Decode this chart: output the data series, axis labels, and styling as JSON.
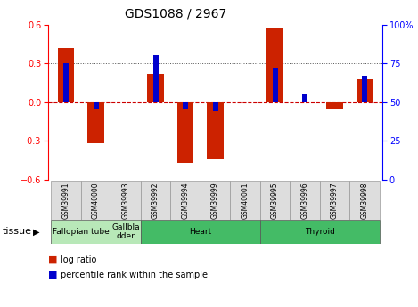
{
  "title": "GDS1088 / 2967",
  "samples": [
    "GSM39991",
    "GSM40000",
    "GSM39993",
    "GSM39992",
    "GSM39994",
    "GSM39999",
    "GSM40001",
    "GSM39995",
    "GSM39996",
    "GSM39997",
    "GSM39998"
  ],
  "log_ratio": [
    0.42,
    -0.32,
    0.0,
    0.22,
    -0.47,
    -0.44,
    0.0,
    0.57,
    0.0,
    -0.06,
    0.18
  ],
  "percentile_rank": [
    75,
    46,
    null,
    80,
    46,
    44,
    null,
    72,
    55,
    null,
    67
  ],
  "tissues": [
    {
      "label": "Fallopian tube",
      "start": 0,
      "end": 2,
      "color": "#b8e8b8"
    },
    {
      "label": "Gallbla\ndder",
      "start": 2,
      "end": 3,
      "color": "#b8e8b8"
    },
    {
      "label": "Heart",
      "start": 3,
      "end": 7,
      "color": "#44bb66"
    },
    {
      "label": "Thyroid",
      "start": 7,
      "end": 11,
      "color": "#44bb66"
    }
  ],
  "bar_color_red": "#CC2200",
  "bar_color_blue": "#0000CC",
  "bar_width": 0.55,
  "blue_bar_width": 0.18,
  "ylim_left": [
    -0.6,
    0.6
  ],
  "ylim_right": [
    0,
    100
  ],
  "yticks_left": [
    -0.6,
    -0.3,
    0.0,
    0.3,
    0.6
  ],
  "yticks_right": [
    0,
    25,
    50,
    75,
    100
  ],
  "ytick_right_labels": [
    "0",
    "25",
    "50",
    "75",
    "100%"
  ],
  "hlines_dotted": [
    -0.3,
    0.3
  ],
  "zero_line_color": "#CC0000",
  "dot_line_color": "#555555",
  "bg_color": "#ffffff",
  "sample_box_color": "#dddddd",
  "sample_box_edge": "#999999"
}
